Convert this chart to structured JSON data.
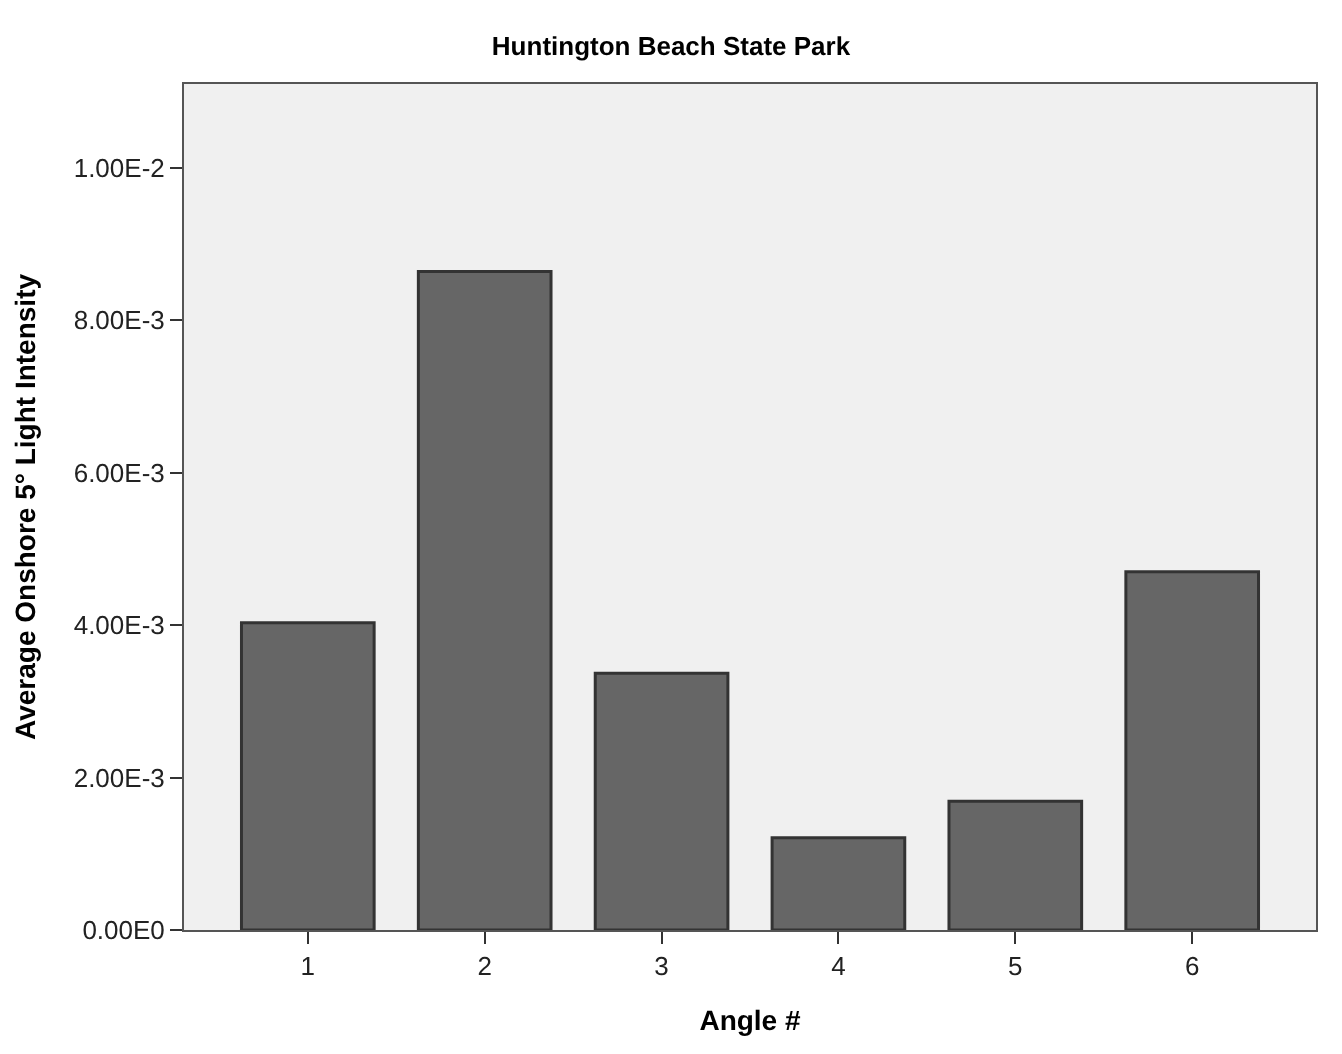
{
  "chart_data": {
    "type": "bar",
    "title": "Huntington Beach State Park",
    "xlabel": "Angle #",
    "ylabel": "Average Onshore 5° Light Intensity",
    "categories": [
      "1",
      "2",
      "3",
      "4",
      "5",
      "6"
    ],
    "values": [
      0.00403,
      0.00864,
      0.00337,
      0.00121,
      0.00169,
      0.0047
    ],
    "color": "#666666",
    "ylim": [
      0,
      0.0111
    ],
    "yticks": [
      {
        "value": 0,
        "label": "0.00E0"
      },
      {
        "value": 0.002,
        "label": "2.00E-3"
      },
      {
        "value": 0.004,
        "label": "4.00E-3"
      },
      {
        "value": 0.006,
        "label": "6.00E-3"
      },
      {
        "value": 0.008,
        "label": "8.00E-3"
      },
      {
        "value": 0.01,
        "label": "1.00E-2"
      }
    ],
    "grid": false
  }
}
